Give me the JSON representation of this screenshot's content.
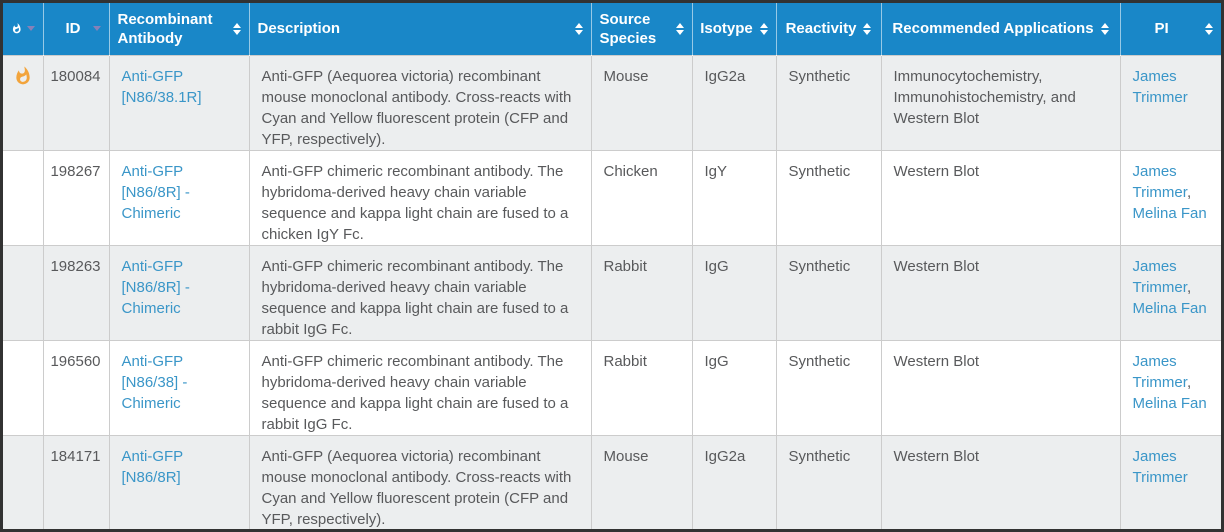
{
  "colors": {
    "header_bg": "#1987c8",
    "link": "#3a96c8",
    "flame": "#f2a43c",
    "row_alt_bg": "#eceeef",
    "text": "#58595b",
    "border": "#cccccc",
    "arrow_sorted": "#8681b8"
  },
  "table": {
    "columns": [
      {
        "label": "",
        "icon": "flame-icon",
        "sort": "desc"
      },
      {
        "label": "ID",
        "sort": "desc"
      },
      {
        "label": "Recombinant Antibody",
        "sort": "both"
      },
      {
        "label": "Description",
        "sort": "both"
      },
      {
        "label": "Source Species",
        "sort": "both"
      },
      {
        "label": "Isotype",
        "sort": "both"
      },
      {
        "label": "Reactivity",
        "sort": "both"
      },
      {
        "label": "Recommended Applications",
        "sort": "both"
      },
      {
        "label": "PI",
        "sort": "both"
      }
    ],
    "rows": [
      {
        "hot": true,
        "id": "180084",
        "antibody": "Anti-GFP [N86/38.1R]",
        "description": "Anti-GFP (Aequorea victoria) recombinant mouse monoclonal antibody. Cross-reacts with Cyan and Yellow fluorescent protein (CFP and YFP, respectively).",
        "source_species": "Mouse",
        "isotype": "IgG2a",
        "reactivity": "Synthetic",
        "applications": "Immunocytochemistry, Immunohistochemistry, and Western Blot",
        "pi": [
          "James Trimmer"
        ]
      },
      {
        "hot": false,
        "id": "198267",
        "antibody": "Anti-GFP [N86/8R] - Chimeric",
        "description": "Anti-GFP chimeric recombinant antibody. The hybridoma-derived heavy chain variable sequence and kappa light chain are fused to a chicken IgY Fc.",
        "source_species": "Chicken",
        "isotype": "IgY",
        "reactivity": "Synthetic",
        "applications": "Western Blot",
        "pi": [
          "James Trimmer",
          "Melina Fan"
        ]
      },
      {
        "hot": false,
        "id": "198263",
        "antibody": "Anti-GFP [N86/8R] - Chimeric",
        "description": "Anti-GFP chimeric recombinant antibody. The hybridoma-derived heavy chain variable sequence and kappa light chain are fused to a rabbit IgG Fc.",
        "source_species": "Rabbit",
        "isotype": "IgG",
        "reactivity": "Synthetic",
        "applications": "Western Blot",
        "pi": [
          "James Trimmer",
          "Melina Fan"
        ]
      },
      {
        "hot": false,
        "id": "196560",
        "antibody": "Anti-GFP [N86/38] - Chimeric",
        "description": "Anti-GFP chimeric recombinant antibody. The hybridoma-derived heavy chain variable sequence and kappa light chain are fused to a rabbit IgG Fc.",
        "source_species": "Rabbit",
        "isotype": "IgG",
        "reactivity": "Synthetic",
        "applications": "Western Blot",
        "pi": [
          "James Trimmer",
          "Melina Fan"
        ]
      },
      {
        "hot": false,
        "id": "184171",
        "antibody": "Anti-GFP [N86/8R]",
        "description": "Anti-GFP (Aequorea victoria) recombinant mouse monoclonal antibody. Cross-reacts with Cyan and Yellow fluorescent protein (CFP and YFP, respectively).",
        "source_species": "Mouse",
        "isotype": "IgG2a",
        "reactivity": "Synthetic",
        "applications": "Western Blot",
        "pi": [
          "James Trimmer"
        ]
      }
    ]
  }
}
